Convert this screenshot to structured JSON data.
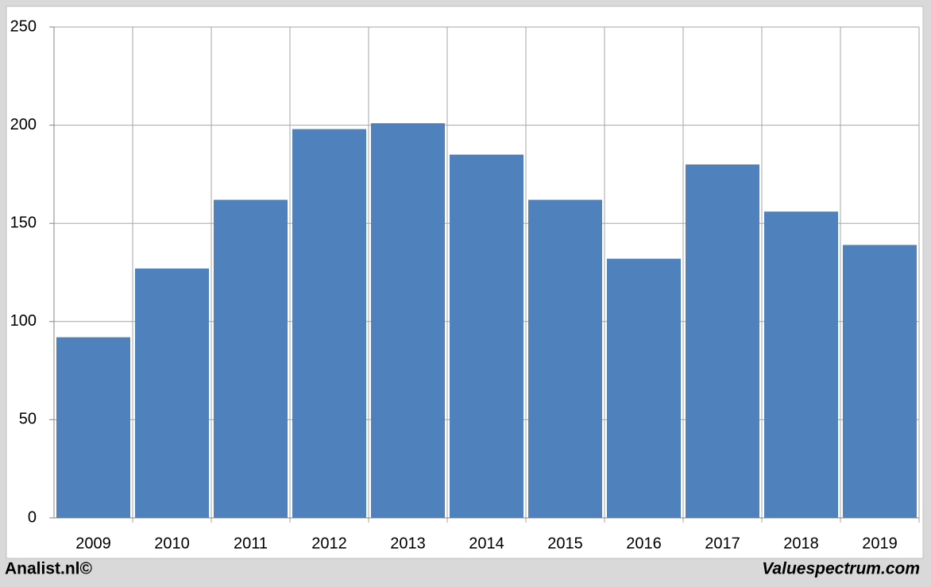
{
  "chart_data": {
    "type": "bar",
    "categories": [
      "2009",
      "2010",
      "2011",
      "2012",
      "2013",
      "2014",
      "2015",
      "2016",
      "2017",
      "2018",
      "2019"
    ],
    "values": [
      92,
      127,
      162,
      198,
      201,
      185,
      162,
      132,
      180,
      156,
      139
    ],
    "color": "#4f81bd",
    "ylim": [
      0,
      250
    ],
    "yticks": [
      0,
      50,
      100,
      150,
      200,
      250
    ],
    "grid": true
  },
  "footer": {
    "left": "Analist.nl©",
    "right": "Valuespectrum.com"
  }
}
